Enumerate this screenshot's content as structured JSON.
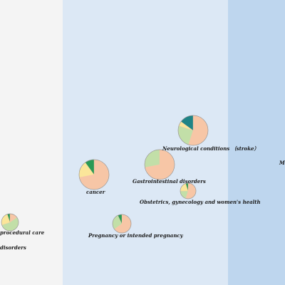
{
  "chart_data": {
    "type": "bubble-pie",
    "colors": {
      "band_1": "#f4f4f4",
      "band_2": "#dce8f5",
      "band_3": "#bed6ee",
      "slice_peach": "#f7c6a6",
      "slice_green": "#c2dfa8",
      "slice_yellow": "#fbe69a",
      "slice_darkgreen": "#2a9a55",
      "slice_teal": "#1f8486",
      "outline": "#9a9a9a"
    },
    "slice_order": [
      "slice_peach",
      "slice_green",
      "slice_yellow",
      "slice_darkgreen",
      "slice_teal"
    ],
    "bubbles": [
      {
        "label": "Neurological conditions （stroke）",
        "slices": [
          0.55,
          0.25,
          0.05,
          0.0,
          0.15
        ]
      },
      {
        "label": "Gastrointestinal disorders",
        "slices": [
          0.72,
          0.28,
          0.0,
          0.0,
          0.0
        ]
      },
      {
        "label": "cancer",
        "slices": [
          0.72,
          0.0,
          0.18,
          0.1,
          0.0
        ]
      },
      {
        "label": "Obstetrics, gynecology and women's health",
        "slices": [
          0.55,
          0.2,
          0.2,
          0.05,
          0.0
        ]
      },
      {
        "label": "Pregnancy or intended pregnancy",
        "slices": [
          0.65,
          0.28,
          0.0,
          0.07,
          0.0
        ]
      },
      {
        "label": "procedural care",
        "slices": [
          0.15,
          0.55,
          0.25,
          0.05,
          0.0
        ]
      },
      {
        "label": "disorders",
        "slices": []
      },
      {
        "label": "M",
        "slices": []
      }
    ]
  }
}
